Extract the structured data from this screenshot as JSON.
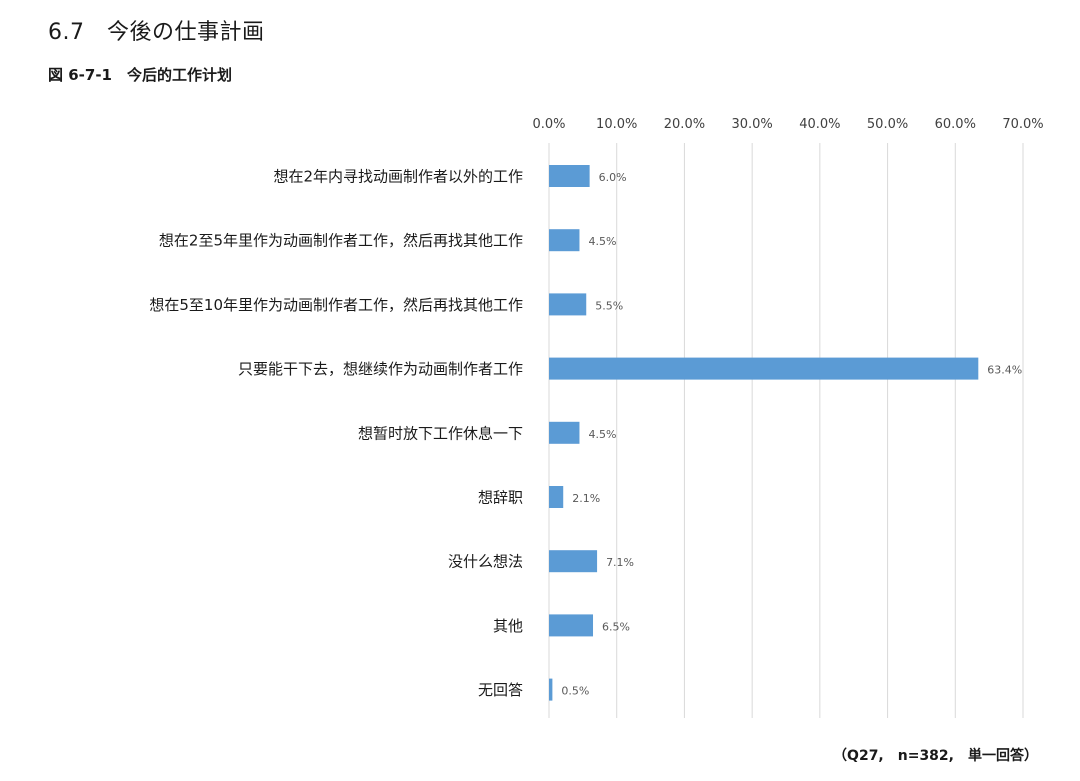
{
  "header": {
    "section_title": "6.7　今後の仕事計画",
    "figure_caption": "図 6-7-1　今后的工作计划"
  },
  "chart_data": {
    "type": "bar",
    "orientation": "horizontal",
    "categories": [
      "想在2年内寻找动画制作者以外的工作",
      "想在2至5年里作为动画制作者工作，然后再找其他工作",
      "想在5至10年里作为动画制作者工作，然后再找其他工作",
      "只要能干下去，想继续作为动画制作者工作",
      "想暂时放下工作休息一下",
      "想辞职",
      "没什么想法",
      "其他",
      "无回答"
    ],
    "values": [
      6.0,
      4.5,
      5.5,
      63.4,
      4.5,
      2.1,
      7.1,
      6.5,
      0.5
    ],
    "value_labels": [
      "6.0%",
      "4.5%",
      "5.5%",
      "63.4%",
      "4.5%",
      "2.1%",
      "7.1%",
      "6.5%",
      "0.5%"
    ],
    "xlim": [
      0,
      70
    ],
    "x_ticks": [
      "0.0%",
      "10.0%",
      "20.0%",
      "30.0%",
      "40.0%",
      "50.0%",
      "60.0%",
      "70.0%"
    ],
    "x_axis_position": "top",
    "grid": true,
    "bar_color": "#5b9bd5",
    "grid_color": "#d9d9d9"
  },
  "footnote": "（Q27,　n=382,　単一回答）"
}
